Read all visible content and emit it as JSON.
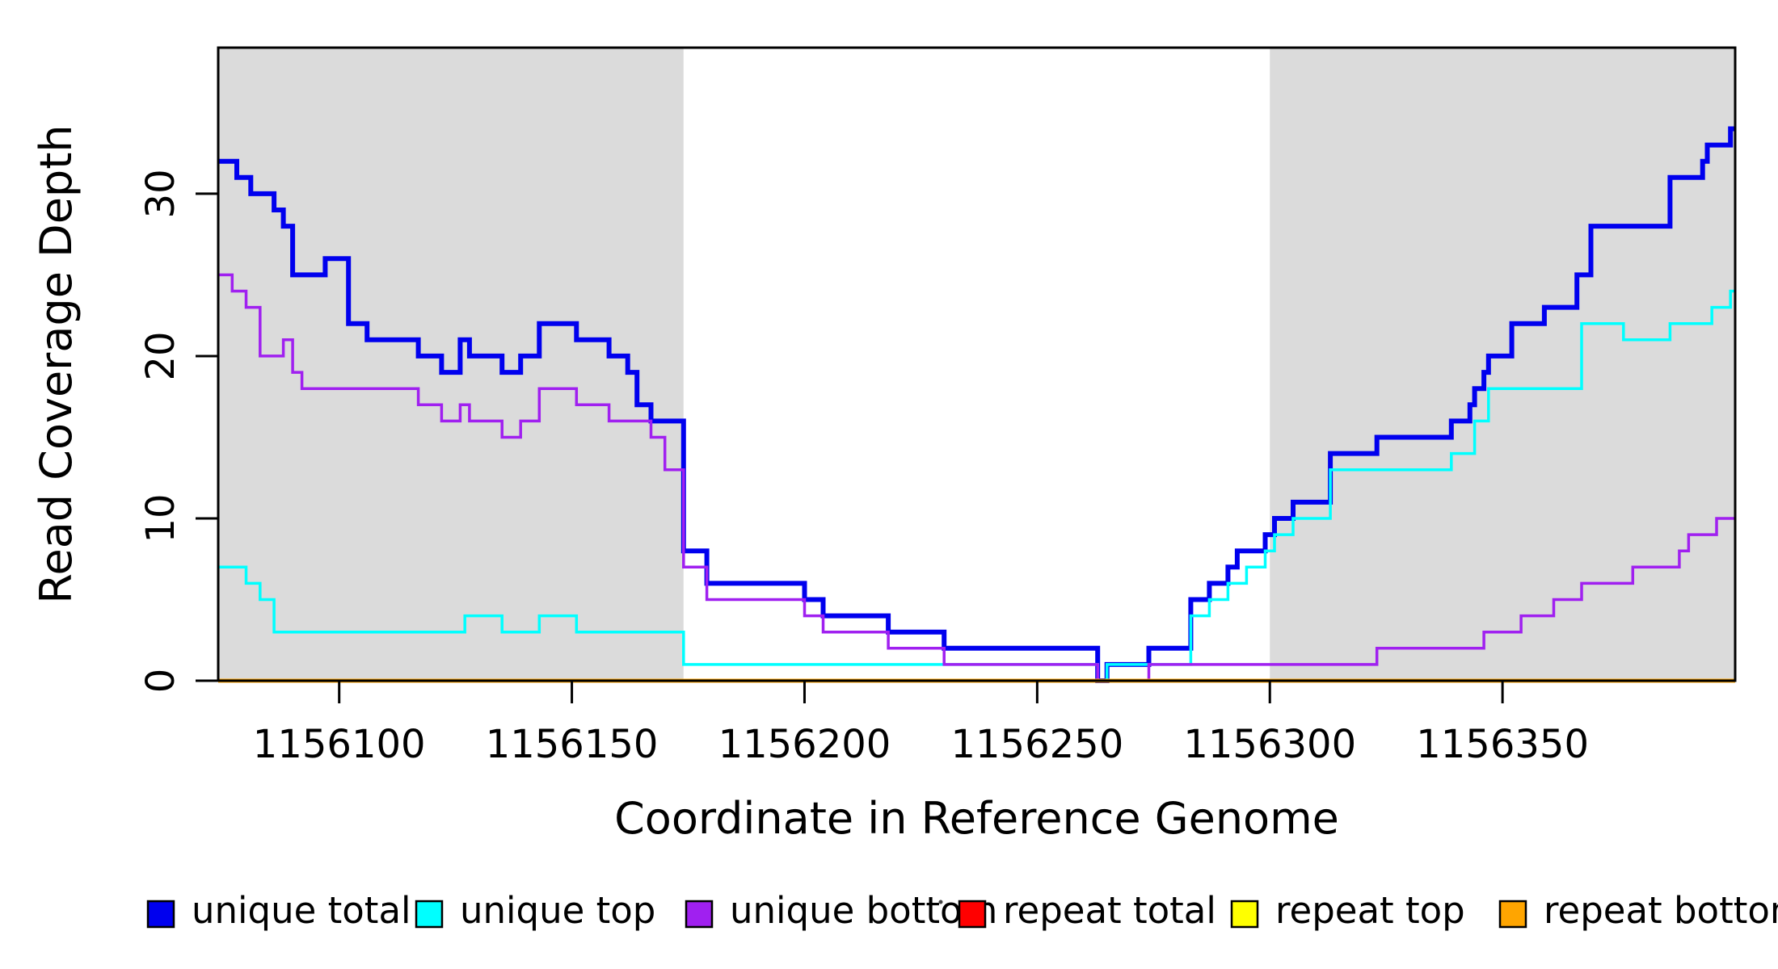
{
  "figure": {
    "background": "#ffffff",
    "axis_color": "#000000",
    "band_color": "#DBDBDB",
    "xlabel": "Coordinate in Reference Genome",
    "ylabel": "Read Coverage Depth"
  },
  "chart_data": {
    "type": "line",
    "subtype": "step-coverage",
    "title": "",
    "xlabel": "Coordinate in Reference Genome",
    "ylabel": "Read Coverage Depth",
    "xlim": [
      1156074,
      1156400
    ],
    "ylim": [
      0,
      39
    ],
    "xticks": [
      1156100,
      1156150,
      1156200,
      1156250,
      1156300,
      1156350
    ],
    "yticks": [
      0,
      10,
      20,
      30
    ],
    "grid": false,
    "legend_position": "bottom",
    "highlight_regions": [
      {
        "name": "left-gray-band",
        "x0": 1156074,
        "x1": 1156174
      },
      {
        "name": "right-gray-band",
        "x0": 1156300,
        "x1": 1156400
      }
    ],
    "series": [
      {
        "name": "unique total",
        "color": "#0000EE",
        "width": 6,
        "steps": [
          [
            1156074,
            32
          ],
          [
            1156078,
            31
          ],
          [
            1156081,
            30
          ],
          [
            1156086,
            29
          ],
          [
            1156088,
            28
          ],
          [
            1156090,
            25
          ],
          [
            1156097,
            26
          ],
          [
            1156102,
            22
          ],
          [
            1156106,
            21
          ],
          [
            1156117,
            20
          ],
          [
            1156122,
            19
          ],
          [
            1156126,
            21
          ],
          [
            1156128,
            20
          ],
          [
            1156135,
            19
          ],
          [
            1156139,
            20
          ],
          [
            1156143,
            22
          ],
          [
            1156151,
            21
          ],
          [
            1156158,
            20
          ],
          [
            1156162,
            19
          ],
          [
            1156164,
            17
          ],
          [
            1156167,
            16
          ],
          [
            1156174,
            8
          ],
          [
            1156179,
            6
          ],
          [
            1156200,
            5
          ],
          [
            1156204,
            4
          ],
          [
            1156218,
            3
          ],
          [
            1156230,
            2
          ],
          [
            1156263,
            0
          ],
          [
            1156265,
            1
          ],
          [
            1156274,
            2
          ],
          [
            1156283,
            5
          ],
          [
            1156287,
            6
          ],
          [
            1156291,
            7
          ],
          [
            1156293,
            8
          ],
          [
            1156299,
            9
          ],
          [
            1156301,
            10
          ],
          [
            1156305,
            11
          ],
          [
            1156313,
            14
          ],
          [
            1156323,
            15
          ],
          [
            1156339,
            16
          ],
          [
            1156343,
            17
          ],
          [
            1156344,
            18
          ],
          [
            1156346,
            19
          ],
          [
            1156347,
            20
          ],
          [
            1156352,
            22
          ],
          [
            1156359,
            23
          ],
          [
            1156366,
            25
          ],
          [
            1156369,
            28
          ],
          [
            1156386,
            31
          ],
          [
            1156393,
            32
          ],
          [
            1156394,
            33
          ],
          [
            1156399,
            34
          ],
          [
            1156400,
            34
          ]
        ]
      },
      {
        "name": "unique top",
        "color": "#00FFFF",
        "width": 3.5,
        "steps": [
          [
            1156074,
            7
          ],
          [
            1156080,
            6
          ],
          [
            1156083,
            5
          ],
          [
            1156086,
            3
          ],
          [
            1156127,
            4
          ],
          [
            1156135,
            3
          ],
          [
            1156143,
            4
          ],
          [
            1156151,
            3
          ],
          [
            1156174,
            1
          ],
          [
            1156263,
            0
          ],
          [
            1156265,
            1
          ],
          [
            1156283,
            4
          ],
          [
            1156287,
            5
          ],
          [
            1156291,
            6
          ],
          [
            1156295,
            7
          ],
          [
            1156299,
            8
          ],
          [
            1156301,
            9
          ],
          [
            1156305,
            10
          ],
          [
            1156313,
            13
          ],
          [
            1156339,
            14
          ],
          [
            1156344,
            16
          ],
          [
            1156347,
            18
          ],
          [
            1156367,
            22
          ],
          [
            1156376,
            21
          ],
          [
            1156386,
            22
          ],
          [
            1156395,
            23
          ],
          [
            1156399,
            24
          ],
          [
            1156400,
            24
          ]
        ]
      },
      {
        "name": "unique bottom",
        "color": "#A020F0",
        "width": 3.5,
        "steps": [
          [
            1156074,
            25
          ],
          [
            1156077,
            24
          ],
          [
            1156080,
            23
          ],
          [
            1156083,
            20
          ],
          [
            1156088,
            21
          ],
          [
            1156090,
            19
          ],
          [
            1156092,
            18
          ],
          [
            1156117,
            17
          ],
          [
            1156122,
            16
          ],
          [
            1156126,
            17
          ],
          [
            1156128,
            16
          ],
          [
            1156135,
            15
          ],
          [
            1156139,
            16
          ],
          [
            1156143,
            18
          ],
          [
            1156151,
            17
          ],
          [
            1156158,
            16
          ],
          [
            1156167,
            15
          ],
          [
            1156170,
            13
          ],
          [
            1156174,
            7
          ],
          [
            1156179,
            5
          ],
          [
            1156200,
            4
          ],
          [
            1156204,
            3
          ],
          [
            1156218,
            2
          ],
          [
            1156230,
            1
          ],
          [
            1156263,
            0
          ],
          [
            1156274,
            1
          ],
          [
            1156323,
            2
          ],
          [
            1156346,
            3
          ],
          [
            1156354,
            4
          ],
          [
            1156361,
            5
          ],
          [
            1156367,
            6
          ],
          [
            1156378,
            7
          ],
          [
            1156388,
            8
          ],
          [
            1156390,
            9
          ],
          [
            1156396,
            10
          ],
          [
            1156400,
            10
          ]
        ]
      },
      {
        "name": "repeat total",
        "color": "#FF0000",
        "width": 3.5,
        "steps": [
          [
            1156074,
            0
          ],
          [
            1156400,
            0
          ]
        ]
      },
      {
        "name": "repeat top",
        "color": "#FFFF00",
        "width": 3.5,
        "steps": [
          [
            1156074,
            0
          ],
          [
            1156400,
            0
          ]
        ]
      },
      {
        "name": "repeat bottom",
        "color": "#FFA500",
        "width": 5,
        "steps": [
          [
            1156074,
            0
          ],
          [
            1156400,
            0
          ]
        ]
      }
    ]
  },
  "legend": {
    "items": [
      {
        "label": "unique total",
        "color": "#0000EE"
      },
      {
        "label": "unique top",
        "color": "#00FFFF"
      },
      {
        "label": "unique bottom",
        "color": "#A020F0"
      },
      {
        "label": "repeat total",
        "color": "#FF0000"
      },
      {
        "label": "repeat top",
        "color": "#FFFF00"
      },
      {
        "label": "repeat bottom",
        "color": "#FFA500"
      }
    ]
  }
}
